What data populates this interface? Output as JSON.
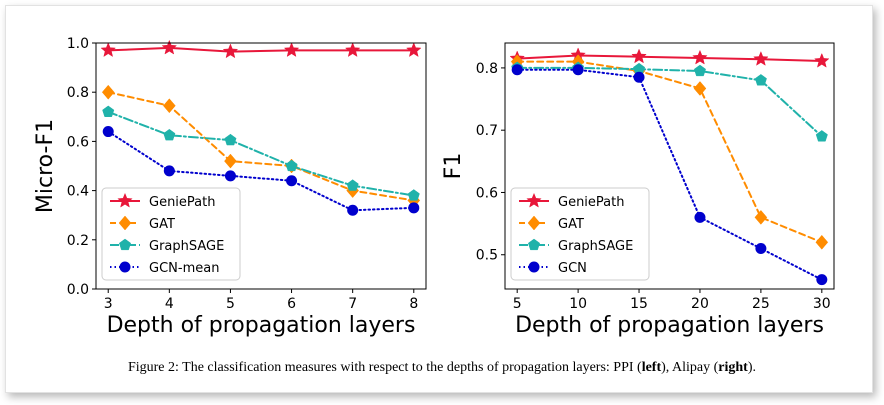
{
  "chart_data": [
    {
      "type": "line",
      "panel": "left",
      "xlabel": "Depth of propagation layers",
      "ylabel": "Micro-F1",
      "x": [
        3,
        4,
        5,
        6,
        7,
        8
      ],
      "xticks": [
        "3",
        "4",
        "5",
        "6",
        "7",
        "8"
      ],
      "xlim": [
        2.8,
        8.2
      ],
      "ylim": [
        0.0,
        1.0
      ],
      "yticks": [
        "0.0",
        "0.2",
        "0.4",
        "0.6",
        "0.8",
        "1.0"
      ],
      "ytick_values": [
        0.0,
        0.2,
        0.4,
        0.6,
        0.8,
        1.0
      ],
      "legend_position": "lower-left",
      "series": [
        {
          "name": "GeniePath",
          "color": "#e8173a",
          "marker": "star",
          "dash": "solid",
          "values": [
            0.97,
            0.98,
            0.965,
            0.97,
            0.97,
            0.97
          ]
        },
        {
          "name": "GAT",
          "color": "#ff8c00",
          "marker": "diamond",
          "dash": "dashed",
          "values": [
            0.8,
            0.745,
            0.52,
            0.5,
            0.4,
            0.36
          ]
        },
        {
          "name": "GraphSAGE",
          "color": "#20b2aa",
          "marker": "pentagon",
          "dash": "dashdot",
          "values": [
            0.72,
            0.625,
            0.605,
            0.5,
            0.42,
            0.38
          ]
        },
        {
          "name": "GCN-mean",
          "color": "#0000cd",
          "marker": "circle",
          "dash": "dotted",
          "values": [
            0.64,
            0.48,
            0.46,
            0.44,
            0.32,
            0.33
          ]
        }
      ]
    },
    {
      "type": "line",
      "panel": "right",
      "xlabel": "Depth of propagation layers",
      "ylabel": "F1",
      "x": [
        5,
        10,
        15,
        20,
        25,
        30
      ],
      "xticks": [
        "5",
        "10",
        "15",
        "20",
        "25",
        "30"
      ],
      "xlim": [
        4.0,
        31.0
      ],
      "ylim": [
        0.445,
        0.84
      ],
      "yticks": [
        "0.5",
        "0.6",
        "0.7",
        "0.8"
      ],
      "ytick_values": [
        0.5,
        0.6,
        0.7,
        0.8
      ],
      "legend_position": "lower-left",
      "series": [
        {
          "name": "GeniePath",
          "color": "#e8173a",
          "marker": "star",
          "dash": "solid",
          "values": [
            0.815,
            0.82,
            0.818,
            0.816,
            0.814,
            0.811
          ]
        },
        {
          "name": "GAT",
          "color": "#ff8c00",
          "marker": "diamond",
          "dash": "dashed",
          "values": [
            0.81,
            0.81,
            0.795,
            0.767,
            0.56,
            0.52
          ]
        },
        {
          "name": "GraphSAGE",
          "color": "#20b2aa",
          "marker": "pentagon",
          "dash": "dashdot",
          "values": [
            0.8,
            0.8,
            0.798,
            0.795,
            0.78,
            0.69
          ]
        },
        {
          "name": "GCN",
          "color": "#0000cd",
          "marker": "circle",
          "dash": "dotted",
          "values": [
            0.797,
            0.797,
            0.785,
            0.56,
            0.51,
            0.46
          ]
        }
      ]
    }
  ],
  "caption": {
    "prefix": "Figure 2: The classification measures with respect to the depths of propagation layers: PPI (",
    "left_word": "left",
    "middle": "), Alipay (",
    "right_word": "right",
    "suffix": ")."
  }
}
